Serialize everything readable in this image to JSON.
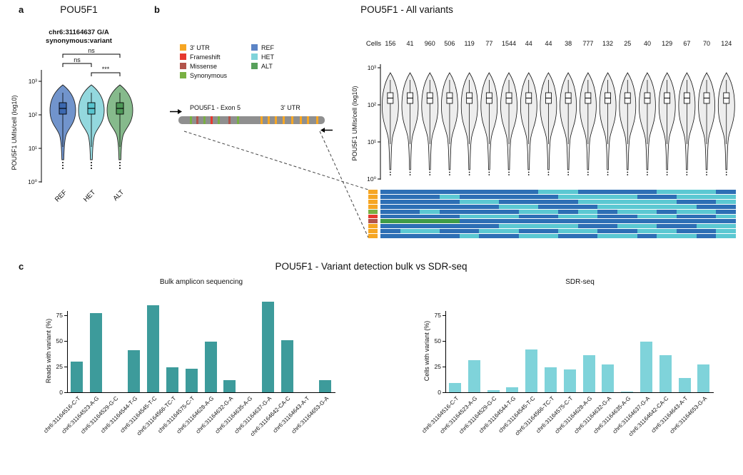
{
  "figure": {
    "panel_a": {
      "label": "a",
      "title": "POU5F1",
      "annotation_line1": "chr6:31164637 G/A",
      "annotation_line2": "synonymous:variant"
    },
    "panel_b": {
      "label": "b",
      "title": "POU5F1 - All variants",
      "variant_legend": [
        {
          "label": "3' UTR",
          "type": "utr3"
        },
        {
          "label": "Frameshift",
          "type": "frameshift"
        },
        {
          "label": "Missense",
          "type": "missense"
        },
        {
          "label": "Synonymous",
          "type": "synonymous"
        }
      ],
      "genotype_legend": [
        {
          "label": "REF",
          "type": "ref"
        },
        {
          "label": "HET",
          "type": "het"
        },
        {
          "label": "ALT",
          "type": "alt"
        }
      ],
      "gene_diagram": {
        "exon_label": "POU5F1 - Exon 5",
        "utr_label": "3' UTR",
        "marks": [
          {
            "x": 0.08,
            "type": "synonymous"
          },
          {
            "x": 0.12,
            "type": "missense"
          },
          {
            "x": 0.17,
            "type": "synonymous"
          },
          {
            "x": 0.22,
            "type": "frameshift"
          },
          {
            "x": 0.27,
            "type": "synonymous"
          },
          {
            "x": 0.34,
            "type": "missense"
          },
          {
            "x": 0.4,
            "type": "synonymous"
          },
          {
            "x": 0.56,
            "type": "utr3"
          },
          {
            "x": 0.61,
            "type": "utr3"
          },
          {
            "x": 0.66,
            "type": "utr3"
          },
          {
            "x": 0.71,
            "type": "utr3"
          },
          {
            "x": 0.77,
            "type": "utr3"
          },
          {
            "x": 0.83,
            "type": "utr3"
          },
          {
            "x": 0.88,
            "type": "utr3"
          },
          {
            "x": 0.94,
            "type": "utr3"
          }
        ]
      }
    },
    "panel_c": {
      "label": "c",
      "title": "POU5F1 - Variant detection bulk vs SDR-seq"
    }
  },
  "colors": {
    "utr3": "#F6A623",
    "frameshift": "#E6392E",
    "missense": "#B2544B",
    "synonymous": "#79B043",
    "ref": "#5B84C6",
    "het": "#7FD3DA",
    "alt": "#57A05B"
  },
  "chart_data": [
    {
      "id": "pou5f1_by_genotype",
      "type": "violin",
      "title": "POU5F1",
      "categories": [
        "REF",
        "HET",
        "ALT"
      ],
      "ylabel": "POU5F1 UMIs/cell (log10)",
      "yticks": [
        "10³",
        "10²",
        "10¹",
        "10⁰"
      ],
      "ylim_log10": [
        0,
        3
      ],
      "median_umis_log10": [
        2.2,
        2.2,
        2.15
      ],
      "significance": [
        {
          "a": "REF",
          "b": "ALT",
          "label": "ns"
        },
        {
          "a": "REF",
          "b": "HET",
          "label": "ns"
        },
        {
          "a": "HET",
          "b": "ALT",
          "label": "***"
        }
      ],
      "fill_colors": [
        "#7194CC",
        "#93D8DE",
        "#86BA8C"
      ],
      "box_colors": [
        "#3C68B0",
        "#58C4CE",
        "#4E9858"
      ]
    },
    {
      "id": "all_variants_violin",
      "type": "violin",
      "title": "POU5F1 - All variants",
      "cells_label": "Cells",
      "counts": [
        156,
        41,
        960,
        506,
        119,
        77,
        1544,
        44,
        44,
        38,
        777,
        132,
        25,
        40,
        129,
        67,
        70,
        124
      ],
      "ylabel": "POU5F1 UMIs/cell (log10)",
      "yticks": [
        "10³",
        "10²",
        "10¹",
        "10⁰"
      ],
      "ylim_log10": [
        0,
        3
      ],
      "fill_color": "#EDEDED"
    },
    {
      "id": "genotype_heatmap",
      "type": "heatmap",
      "genotype_colors": {
        "R": "#2D6FB5",
        "H": "#5BC8D2",
        "A": "#3F9C47"
      },
      "genotype_legend_keys": {
        "R": "REF",
        "H": "HET",
        "A": "ALT"
      },
      "variant_row_types": [
        "utr3",
        "utr3",
        "utr3",
        "utr3",
        "synonymous",
        "frameshift",
        "missense",
        "utr3",
        "utr3",
        "utr3"
      ],
      "rows": [
        "RRRRRRRRHHRRRRHHHR",
        "RRRHRRRRRHHHHRRHHH",
        "RRRRHHRRRRHHHHHRRH",
        "RRRRRRHHRRRHHHHHRR",
        "RRHRRRRHHRHRHHRHHR",
        "RRRRHHHRRHHRRHHRRH",
        "AAAARRRRRRRRRRRRRR",
        "RRRRRRHHHHRRHHRRHH",
        "RHHRRHHRRHHRRHHRRH",
        "RRRRHRRHHRRHHRHHRH"
      ]
    },
    {
      "id": "bulk_amplicon",
      "type": "bar",
      "title": "Bulk amplicon sequencing",
      "ylabel": "Reads with variant (%)",
      "yticks": [
        0,
        25,
        50,
        75
      ],
      "ylim": [
        0,
        95
      ],
      "bar_color": "#3D9B9B",
      "categories": [
        "chr6:31164516-C-T",
        "chr6:31164523-A-G",
        "chr6:31164529-G-C",
        "chr6:31164544-T-G",
        "chr6:31164545-T-C",
        "chr6:31164566-TC-T",
        "chr6:31164575-C-T",
        "chr6:31164628-A-G",
        "chr6:31164632-G-A",
        "chr6:31164635-A-G",
        "chr6:31164637-G-A",
        "chr6:31164642-CA-C",
        "chr6:31164643-A-T",
        "chr6:31164653-G-A"
      ],
      "values": [
        30,
        77,
        0,
        41,
        85,
        24,
        23,
        49,
        12,
        0,
        88,
        51,
        0,
        12
      ]
    },
    {
      "id": "sdr_seq",
      "type": "bar",
      "title": "SDR-seq",
      "ylabel": "Cells with variant (%)",
      "yticks": [
        0,
        25,
        50,
        75
      ],
      "ylim": [
        0,
        95
      ],
      "bar_color": "#7FD3DA",
      "categories": [
        "chr6:31164516-C-T",
        "chr6:31164523-A-G",
        "chr6:31164529-G-C",
        "chr6:31164544-T-G",
        "chr6:31164545-T-C",
        "chr6:31164566-TC-T",
        "chr6:31164575-C-T",
        "chr6:31164628-A-G",
        "chr6:31164632-G-A",
        "chr6:31164635-A-G",
        "chr6:31164637-G-A",
        "chr6:31164642-CA-C",
        "chr6:31164643-A-T",
        "chr6:31164653-G-A"
      ],
      "values": [
        9,
        31,
        2,
        5,
        42,
        24,
        22,
        36,
        27,
        1,
        49,
        36,
        14,
        27
      ]
    }
  ]
}
